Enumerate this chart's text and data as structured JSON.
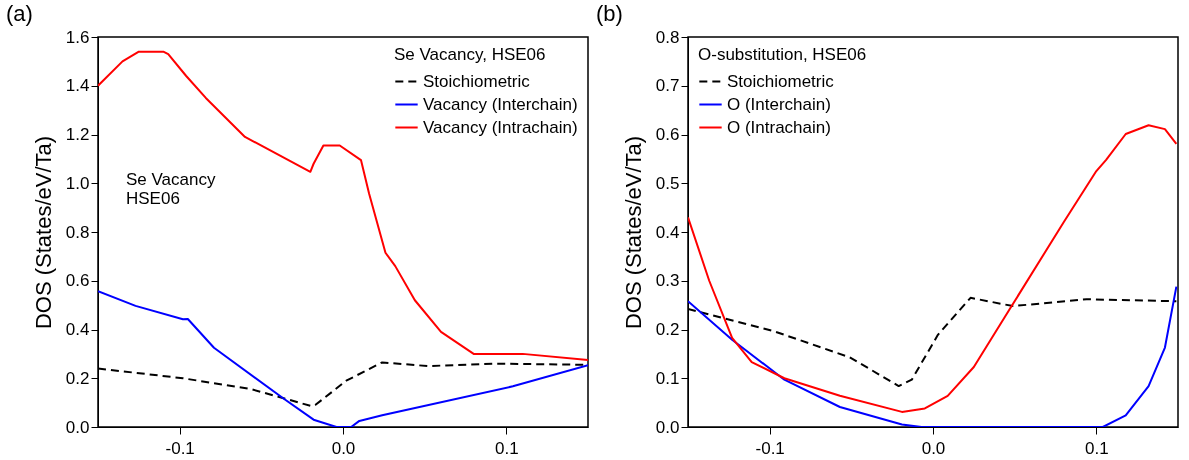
{
  "chart_data": [
    {
      "type": "line",
      "title": "(a)",
      "ylabel": "DOS (States/eV/Ta)",
      "legend_title": "Se Vacancy, HSE06",
      "legend": "top right",
      "grid": false,
      "annotations": [
        "Se Vacancy\nHSE06"
      ],
      "xlim": [
        -0.15,
        0.15
      ],
      "xticks": [
        {
          "value": -0.1,
          "label": "-0.1"
        },
        {
          "value": 0,
          "label": "0.0"
        },
        {
          "value": 0.1,
          "label": "0.1"
        }
      ],
      "ylim": [
        0,
        1.6
      ],
      "yticks": [
        {
          "value": 0,
          "label": "0.0"
        },
        {
          "value": 0.2,
          "label": "0.2"
        },
        {
          "value": 0.4,
          "label": "0.4"
        },
        {
          "value": 0.6,
          "label": "0.6"
        },
        {
          "value": 0.8,
          "label": "0.8"
        },
        {
          "value": 1,
          "label": "1.0"
        },
        {
          "value": 1.2,
          "label": "1.2"
        },
        {
          "value": 1.4,
          "label": "1.4"
        },
        {
          "value": 1.6,
          "label": "1.6"
        }
      ],
      "series": [
        {
          "name": "Stoichiometric",
          "color": "#000000",
          "line_style": "dashed",
          "x": [
            -0.15,
            -0.098,
            -0.056,
            -0.02,
            -0.017,
            0.002,
            0.024,
            0.052,
            0.094,
            0.15
          ],
          "values": [
            0.24,
            0.2,
            0.155,
            0.087,
            0.09,
            0.19,
            0.265,
            0.25,
            0.26,
            0.255
          ]
        },
        {
          "name": "Vacancy (Interchain)",
          "color": "#0000ff",
          "line_style": "solid",
          "x": [
            -0.15,
            -0.127,
            -0.098,
            -0.095,
            -0.079,
            -0.036,
            -0.018,
            -0.004,
            0.005,
            0.01,
            0.024,
            0.104,
            0.15
          ],
          "values": [
            0.557,
            0.497,
            0.442,
            0.443,
            0.325,
            0.115,
            0.03,
            0,
            0,
            0.025,
            0.048,
            0.167,
            0.253
          ]
        },
        {
          "name": "Vacancy (Intrachain)",
          "color": "#ff0000",
          "line_style": "solid",
          "x": [
            -0.15,
            -0.135,
            -0.125,
            -0.11,
            -0.107,
            -0.096,
            -0.084,
            -0.06,
            -0.02,
            -0.018,
            -0.012,
            -0.002,
            0.011,
            0.016,
            0.026,
            0.032,
            0.044,
            0.06,
            0.08,
            0.11,
            0.15
          ],
          "values": [
            1.4,
            1.5,
            1.54,
            1.54,
            1.53,
            1.44,
            1.35,
            1.19,
            1.047,
            1.08,
            1.155,
            1.155,
            1.095,
            0.957,
            0.715,
            0.66,
            0.52,
            0.39,
            0.3,
            0.3,
            0.275
          ]
        }
      ]
    },
    {
      "type": "line",
      "title": "(b)",
      "ylabel": "DOS (States/eV/Ta)",
      "legend_title": "O-substitution, HSE06",
      "legend": "top left",
      "grid": false,
      "xlim": [
        -0.15,
        0.15
      ],
      "xticks": [
        {
          "value": -0.1,
          "label": "-0.1"
        },
        {
          "value": 0,
          "label": "0.0"
        },
        {
          "value": 0.1,
          "label": "0.1"
        }
      ],
      "ylim": [
        0,
        0.8
      ],
      "yticks": [
        {
          "value": 0,
          "label": "0.0"
        },
        {
          "value": 0.1,
          "label": "0.1"
        },
        {
          "value": 0.2,
          "label": "0.2"
        },
        {
          "value": 0.3,
          "label": "0.3"
        },
        {
          "value": 0.4,
          "label": "0.4"
        },
        {
          "value": 0.5,
          "label": "0.5"
        },
        {
          "value": 0.6,
          "label": "0.6"
        },
        {
          "value": 0.7,
          "label": "0.7"
        },
        {
          "value": 0.8,
          "label": "0.8"
        }
      ],
      "series": [
        {
          "name": "Stoichiometric",
          "color": "#000000",
          "line_style": "dashed",
          "x": [
            -0.15,
            -0.097,
            -0.051,
            -0.021,
            -0.013,
            0.003,
            0.023,
            0.049,
            0.094,
            0.149
          ],
          "values": [
            0.242,
            0.196,
            0.143,
            0.084,
            0.097,
            0.189,
            0.265,
            0.248,
            0.262,
            0.258
          ]
        },
        {
          "name": "O (Interchain)",
          "color": "#0000ff",
          "line_style": "solid",
          "x": [
            -0.15,
            -0.123,
            -0.091,
            -0.057,
            -0.019,
            -0.007,
            0.104,
            0.118,
            0.132,
            0.142,
            0.149
          ],
          "values": [
            0.258,
            0.179,
            0.097,
            0.041,
            0.005,
            0,
            0,
            0.024,
            0.084,
            0.163,
            0.288
          ]
        },
        {
          "name": "O (Intrachain)",
          "color": "#ff0000",
          "line_style": "solid",
          "x": [
            -0.15,
            -0.137,
            -0.123,
            -0.111,
            -0.091,
            -0.057,
            -0.019,
            -0.005,
            0.009,
            0.025,
            0.047,
            0.08,
            0.1,
            0.106,
            0.118,
            0.132,
            0.142,
            0.149
          ],
          "values": [
            0.43,
            0.3,
            0.183,
            0.133,
            0.1,
            0.064,
            0.031,
            0.038,
            0.064,
            0.123,
            0.242,
            0.42,
            0.525,
            0.548,
            0.601,
            0.619,
            0.611,
            0.581
          ]
        }
      ]
    }
  ]
}
